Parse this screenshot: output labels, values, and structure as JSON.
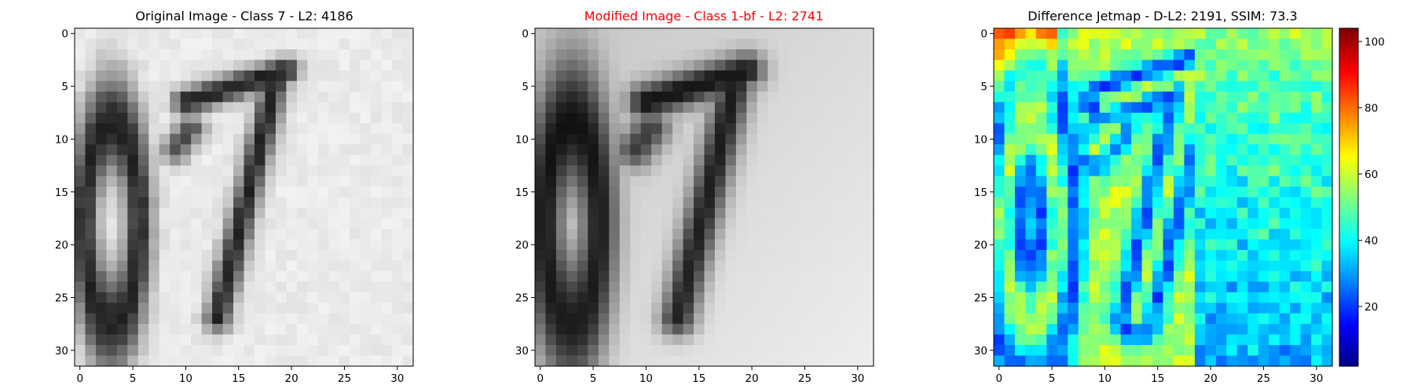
{
  "panels": [
    {
      "title": "Original Image - Class 7 - L2: 4186",
      "title_color": "#000000",
      "kind": "gray",
      "x_ticks": [
        "0",
        "5",
        "10",
        "15",
        "20",
        "25",
        "30"
      ],
      "y_ticks": [
        "0",
        "5",
        "10",
        "15",
        "20",
        "25",
        "30"
      ]
    },
    {
      "title": "Modified Image - Class 1-bf - L2: 2741",
      "title_color": "#ff0000",
      "kind": "gray",
      "x_ticks": [
        "0",
        "5",
        "10",
        "15",
        "20",
        "25",
        "30"
      ],
      "y_ticks": [
        "0",
        "5",
        "10",
        "15",
        "20",
        "25",
        "30"
      ]
    },
    {
      "title": "Difference Jetmap - D-L2: 2191, SSIM: 73.3",
      "title_color": "#000000",
      "kind": "jet",
      "x_ticks": [
        "0",
        "5",
        "10",
        "15",
        "20",
        "25",
        "30"
      ],
      "y_ticks": [
        "0",
        "5",
        "10",
        "15",
        "20",
        "25",
        "30"
      ]
    }
  ],
  "colorbar": {
    "ticks": [
      "20",
      "40",
      "60",
      "80",
      "100"
    ],
    "range": [
      2,
      104
    ],
    "tick_values": [
      20,
      40,
      60,
      80,
      100
    ]
  },
  "chart_data": [
    {
      "type": "heatmap",
      "title": "Original Image - Class 7 - L2: 4186",
      "colormap": "gray",
      "shape": [
        32,
        32
      ],
      "xlim": [
        -0.5,
        31.5
      ],
      "ylim": [
        31.5,
        -0.5
      ],
      "content": "handwritten digits '0' and '7', dark strokes on light background"
    },
    {
      "type": "heatmap",
      "title": "Modified Image - Class 1-bf - L2: 2741",
      "colormap": "gray",
      "shape": [
        32,
        32
      ],
      "xlim": [
        -0.5,
        31.5
      ],
      "ylim": [
        31.5,
        -0.5
      ],
      "content": "smoothed version of the original digits on gray background"
    },
    {
      "type": "heatmap",
      "title": "Difference Jetmap - D-L2: 2191, SSIM: 73.3",
      "colormap": "jet",
      "shape": [
        32,
        32
      ],
      "xlim": [
        -0.5,
        31.5
      ],
      "ylim": [
        31.5,
        -0.5
      ],
      "value_range": [
        2,
        104
      ]
    }
  ]
}
